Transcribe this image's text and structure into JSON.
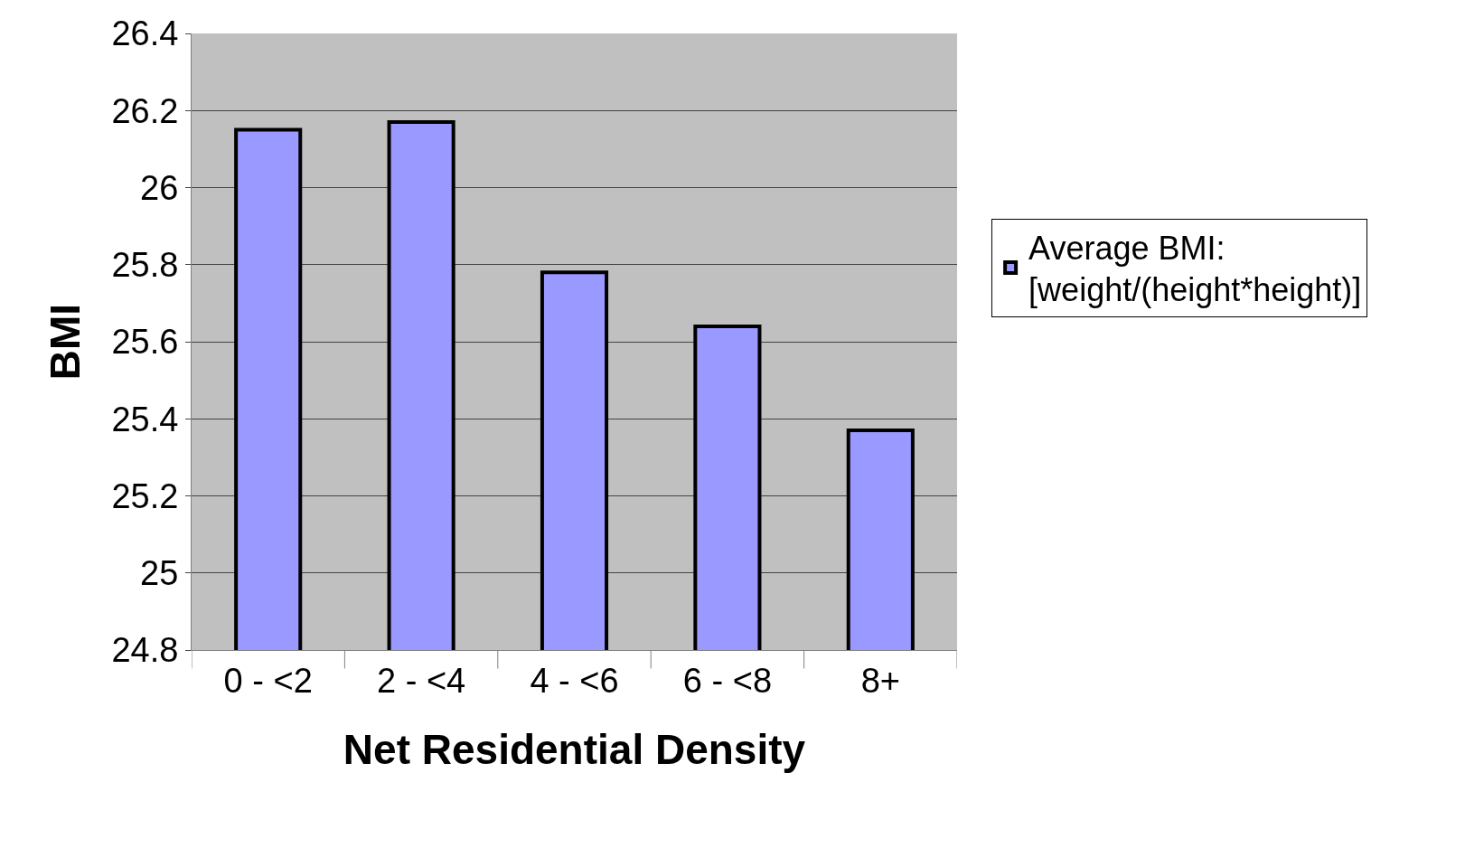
{
  "chart_data": {
    "type": "bar",
    "xlabel": "Net Residential Density",
    "ylabel": "BMI",
    "categories": [
      "0 - <2",
      "2 - <4",
      "4 - <6",
      "6 - <8",
      "8+"
    ],
    "series": [
      {
        "name": "Average BMI:\n[weight/(height*height)]",
        "color": "#9999ff",
        "values": [
          26.15,
          26.17,
          25.78,
          25.64,
          25.37
        ]
      }
    ],
    "ylim": [
      24.8,
      26.4
    ],
    "yticks": [
      24.8,
      25,
      25.2,
      25.4,
      25.6,
      25.8,
      26,
      26.2,
      26.4
    ],
    "grid": "y",
    "legend": "right"
  }
}
